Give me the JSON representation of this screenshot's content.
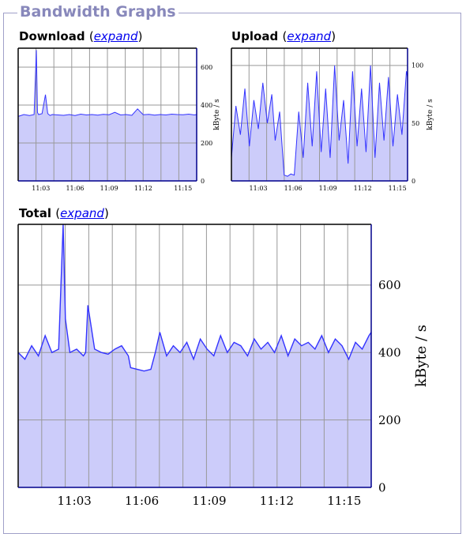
{
  "section": {
    "title": "Bandwidth Graphs",
    "expand_label": "expand",
    "paren_open": "(",
    "paren_close": ")"
  },
  "colors": {
    "line": "#3333ff",
    "fill": "#ccccfa",
    "grid": "#999999",
    "fieldset_border": "#a0a0c8",
    "legend_text": "#8888bb"
  },
  "chart_data": [
    {
      "id": "download",
      "title": "Download",
      "type": "area",
      "ylabel": "kByte / s",
      "y_ticks": [
        0,
        200,
        400,
        600
      ],
      "y_max": 700,
      "x_start_min": 0,
      "x_end_min": 15.7,
      "x_tick_values": [
        2,
        5,
        8,
        11,
        14.5
      ],
      "x_tick_labels": [
        "11:03",
        "11:06",
        "11:09",
        "11:12",
        "11:15"
      ],
      "grid_lines": 10,
      "series": {
        "x": [
          0.0,
          0.5,
          1.0,
          1.4,
          1.6,
          1.7,
          1.8,
          2.1,
          2.4,
          2.6,
          2.8,
          3.0,
          3.5,
          4.0,
          4.5,
          5.0,
          5.5,
          6.0,
          6.5,
          7.0,
          7.5,
          8.0,
          8.5,
          9.0,
          9.5,
          10.0,
          10.5,
          11.0,
          11.5,
          12.0,
          12.5,
          13.0,
          13.5,
          14.0,
          14.5,
          15.0,
          15.5,
          15.7
        ],
        "values": [
          340,
          350,
          345,
          350,
          690,
          360,
          350,
          355,
          455,
          355,
          345,
          350,
          348,
          346,
          350,
          345,
          352,
          348,
          350,
          347,
          351,
          349,
          362,
          348,
          350,
          346,
          380,
          349,
          351,
          347,
          350,
          348,
          352,
          350,
          349,
          352,
          348,
          350
        ]
      }
    },
    {
      "id": "upload",
      "title": "Upload",
      "type": "area",
      "ylabel": "kByte / s",
      "y_ticks": [
        0,
        50,
        100
      ],
      "y_max": 115,
      "x_start_min": 0,
      "x_end_min": 15.7,
      "x_tick_values": [
        2.4,
        5.5,
        8.6,
        11.7,
        14.8
      ],
      "x_tick_labels": [
        "11:03",
        "11:06",
        "11:09",
        "11:12",
        "11:15"
      ],
      "grid_lines": 10,
      "series": {
        "x": [
          0.0,
          0.4,
          0.8,
          1.2,
          1.6,
          2.0,
          2.4,
          2.8,
          3.2,
          3.6,
          3.9,
          4.3,
          4.7,
          5.0,
          5.3,
          5.6,
          6.0,
          6.4,
          6.8,
          7.2,
          7.6,
          8.0,
          8.4,
          8.8,
          9.2,
          9.6,
          10.0,
          10.4,
          10.8,
          11.2,
          11.6,
          12.0,
          12.4,
          12.8,
          13.2,
          13.6,
          14.0,
          14.4,
          14.8,
          15.2,
          15.6,
          15.7
        ],
        "values": [
          20,
          65,
          40,
          80,
          30,
          70,
          45,
          85,
          50,
          75,
          35,
          60,
          5,
          4,
          6,
          5,
          60,
          20,
          85,
          30,
          95,
          25,
          80,
          20,
          100,
          35,
          70,
          15,
          95,
          30,
          80,
          25,
          100,
          20,
          85,
          35,
          90,
          30,
          75,
          40,
          95,
          90
        ]
      }
    },
    {
      "id": "total",
      "title": "Total",
      "type": "area",
      "ylabel": "kByte / s",
      "y_ticks": [
        0,
        200,
        400,
        600
      ],
      "y_max": 780,
      "x_start_min": 0,
      "x_end_min": 15.7,
      "x_tick_values": [
        2.5,
        5.5,
        8.5,
        11.5,
        14.5
      ],
      "x_tick_labels": [
        "11:03",
        "11:06",
        "11:09",
        "11:12",
        "11:15"
      ],
      "grid_lines": 15,
      "series": {
        "x": [
          0.0,
          0.3,
          0.6,
          0.9,
          1.2,
          1.5,
          1.8,
          2.0,
          2.1,
          2.3,
          2.6,
          2.9,
          3.0,
          3.1,
          3.4,
          3.7,
          4.0,
          4.3,
          4.6,
          4.9,
          5.0,
          5.3,
          5.6,
          5.9,
          6.1,
          6.3,
          6.6,
          6.9,
          7.2,
          7.5,
          7.8,
          8.1,
          8.4,
          8.7,
          9.0,
          9.3,
          9.6,
          9.9,
          10.2,
          10.5,
          10.8,
          11.1,
          11.4,
          11.7,
          12.0,
          12.3,
          12.6,
          12.9,
          13.2,
          13.5,
          13.8,
          14.1,
          14.4,
          14.7,
          15.0,
          15.3,
          15.6,
          15.7
        ],
        "values": [
          400,
          380,
          420,
          390,
          450,
          400,
          410,
          780,
          500,
          400,
          410,
          390,
          400,
          540,
          410,
          400,
          395,
          410,
          420,
          390,
          355,
          350,
          345,
          350,
          400,
          460,
          390,
          420,
          400,
          430,
          380,
          440,
          410,
          390,
          450,
          400,
          430,
          420,
          390,
          440,
          410,
          430,
          400,
          450,
          390,
          440,
          420,
          430,
          410,
          450,
          400,
          440,
          420,
          380,
          430,
          410,
          450,
          460
        ]
      }
    }
  ]
}
